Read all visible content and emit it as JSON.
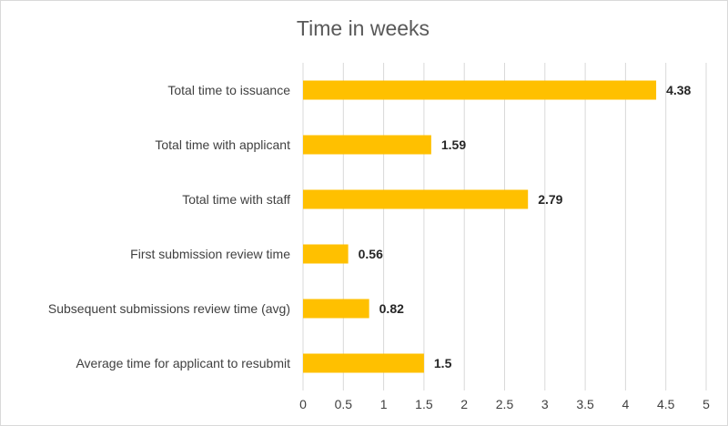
{
  "chart_data": {
    "type": "bar",
    "orientation": "horizontal",
    "title": "Time in weeks",
    "categories": [
      "Total time to issuance",
      "Total time with applicant",
      "Total time with staff",
      "First submission review time",
      "Subsequent submissions review time (avg)",
      "Average time for applicant to resubmit"
    ],
    "values": [
      4.38,
      1.59,
      2.79,
      0.56,
      0.82,
      1.5
    ],
    "data_labels": [
      "4.38",
      "1.59",
      "2.79",
      "0.56",
      "0.82",
      "1.5"
    ],
    "xlim": [
      0,
      5
    ],
    "x_ticks": [
      0,
      0.5,
      1,
      1.5,
      2,
      2.5,
      3,
      3.5,
      4,
      4.5,
      5
    ],
    "x_tick_labels": [
      "0",
      "0.5",
      "1",
      "1.5",
      "2",
      "2.5",
      "3",
      "3.5",
      "4",
      "4.5",
      "5"
    ],
    "xlabel": "",
    "ylabel": "",
    "grid": true,
    "legend": "none",
    "bar_color": "#FFC000"
  }
}
